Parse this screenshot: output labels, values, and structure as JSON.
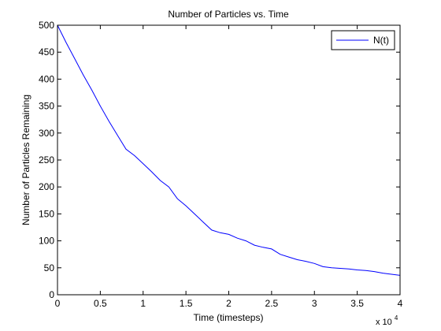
{
  "chart_data": {
    "type": "line",
    "title": "Number of Particles vs. Time",
    "xlabel": "Time (timesteps)",
    "ylabel": "Number of Particles Remaining",
    "x_multiplier_base": "x 10",
    "x_multiplier_exponent": "4",
    "xlim": [
      0,
      4
    ],
    "ylim": [
      0,
      500
    ],
    "x_ticks": [
      0,
      0.5,
      1,
      1.5,
      2,
      2.5,
      3,
      3.5,
      4
    ],
    "x_tick_labels": [
      "0",
      "0.5",
      "1",
      "1.5",
      "2",
      "2.5",
      "3",
      "3.5",
      "4"
    ],
    "y_ticks": [
      0,
      50,
      100,
      150,
      200,
      250,
      300,
      350,
      400,
      450,
      500
    ],
    "y_tick_labels": [
      "0",
      "50",
      "100",
      "150",
      "200",
      "250",
      "300",
      "350",
      "400",
      "450",
      "500"
    ],
    "grid": false,
    "legend_position": "top-right",
    "series": [
      {
        "name": "N(t)",
        "color": "#0000ff",
        "x": [
          0,
          0.1,
          0.2,
          0.3,
          0.4,
          0.5,
          0.6,
          0.7,
          0.8,
          0.9,
          1.0,
          1.1,
          1.2,
          1.3,
          1.4,
          1.5,
          1.6,
          1.7,
          1.8,
          1.9,
          2.0,
          2.1,
          2.2,
          2.3,
          2.4,
          2.5,
          2.6,
          2.7,
          2.8,
          2.9,
          3.0,
          3.1,
          3.2,
          3.3,
          3.4,
          3.5,
          3.6,
          3.7,
          3.8,
          3.9,
          4.0
        ],
        "y": [
          500,
          468,
          438,
          408,
          380,
          350,
          322,
          296,
          270,
          258,
          243,
          228,
          212,
          200,
          178,
          165,
          150,
          135,
          120,
          115,
          112,
          105,
          100,
          92,
          88,
          85,
          75,
          70,
          65,
          62,
          58,
          52,
          50,
          49,
          48,
          46,
          45,
          43,
          40,
          38,
          36
        ]
      }
    ]
  }
}
